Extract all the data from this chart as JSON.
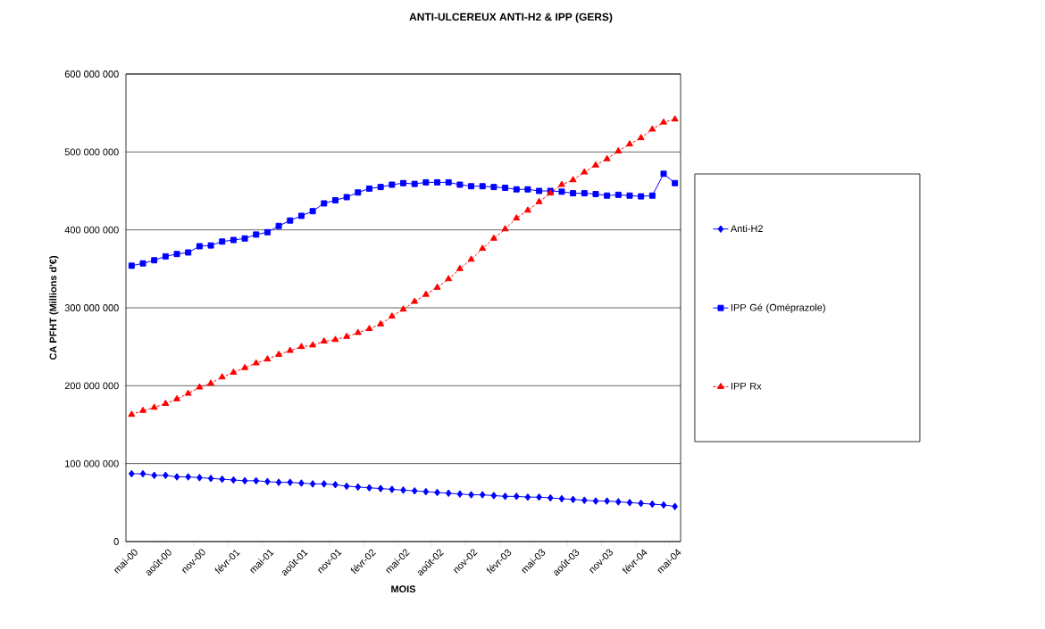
{
  "chart_data": {
    "type": "line",
    "title": "ANTI-ULCEREUX ANTI-H2 & IPP (GERS)",
    "xlabel": "MOIS",
    "ylabel": "CA PFHT (Millions d'€)",
    "categories": [
      "mai-00",
      null,
      null,
      "août-00",
      null,
      null,
      "nov-00",
      null,
      null,
      "févr-01",
      null,
      null,
      "mai-01",
      null,
      null,
      "août-01",
      null,
      null,
      "nov-01",
      null,
      null,
      "févr-02",
      null,
      null,
      "mai-02",
      null,
      null,
      "août-02",
      null,
      null,
      "nov-02",
      null,
      null,
      "févr-03",
      null,
      null,
      "mai-03",
      null,
      null,
      "août-03",
      null,
      null,
      "nov-03",
      null,
      null,
      "févr-04",
      null,
      null,
      "mai-04"
    ],
    "series": [
      {
        "name": "Anti-H2",
        "color": "#0000ff",
        "marker": "diamond",
        "line_style": "solid",
        "values": [
          87000000,
          87000000,
          85000000,
          85000000,
          83000000,
          83000000,
          82000000,
          81000000,
          80000000,
          79000000,
          78000000,
          78000000,
          77000000,
          76000000,
          76000000,
          75000000,
          74000000,
          74000000,
          73000000,
          71000000,
          70000000,
          69000000,
          68000000,
          67000000,
          66000000,
          65000000,
          64000000,
          63000000,
          62000000,
          61000000,
          60000000,
          60000000,
          59000000,
          58000000,
          58000000,
          57000000,
          57000000,
          56000000,
          55000000,
          54000000,
          53000000,
          52000000,
          52000000,
          51000000,
          50000000,
          49000000,
          48000000,
          47000000,
          45000000
        ]
      },
      {
        "name": "IPP Gé (Oméprazole)",
        "color": "#0000ff",
        "marker": "square",
        "line_style": "solid",
        "values": [
          354000000,
          357000000,
          361000000,
          366000000,
          369000000,
          371000000,
          379000000,
          380000000,
          385000000,
          387000000,
          389000000,
          394000000,
          397000000,
          405000000,
          412000000,
          418000000,
          424000000,
          434000000,
          438000000,
          442000000,
          448000000,
          453000000,
          455000000,
          458000000,
          460000000,
          459000000,
          461000000,
          461000000,
          461000000,
          458000000,
          456000000,
          456000000,
          455000000,
          454000000,
          452000000,
          452000000,
          450000000,
          450000000,
          449000000,
          447000000,
          447000000,
          446000000,
          444000000,
          445000000,
          444000000,
          443000000,
          444000000,
          472000000,
          460000000
        ]
      },
      {
        "name": "IPP Rx",
        "color": "#ff0000",
        "marker": "triangle",
        "line_style": "dashed",
        "values": [
          163000000,
          168000000,
          172000000,
          177000000,
          183000000,
          190000000,
          198000000,
          203000000,
          211000000,
          217000000,
          223000000,
          229000000,
          234000000,
          240000000,
          245000000,
          250000000,
          252000000,
          257000000,
          259000000,
          263000000,
          268000000,
          273000000,
          279000000,
          289000000,
          298000000,
          308000000,
          317000000,
          326000000,
          337000000,
          350000000,
          362000000,
          376000000,
          389000000,
          401000000,
          415000000,
          425000000,
          436000000,
          447000000,
          458000000,
          464000000,
          474000000,
          483000000,
          491000000,
          501000000,
          510000000,
          518000000,
          529000000,
          538000000,
          542000000
        ]
      }
    ],
    "ylim": [
      0,
      600000000
    ],
    "yticks": [
      0,
      {
        "value": 100000000,
        "label": "100 000 000"
      },
      {
        "value": 200000000,
        "label": "200 000 000"
      },
      {
        "value": 300000000,
        "label": "300 000 000"
      },
      {
        "value": 400000000,
        "label": "400 000 000"
      },
      {
        "value": 500000000,
        "label": "500 000 000"
      },
      {
        "value": 600000000,
        "label": "600 000 000"
      }
    ],
    "grid": "y",
    "legend": "right"
  }
}
